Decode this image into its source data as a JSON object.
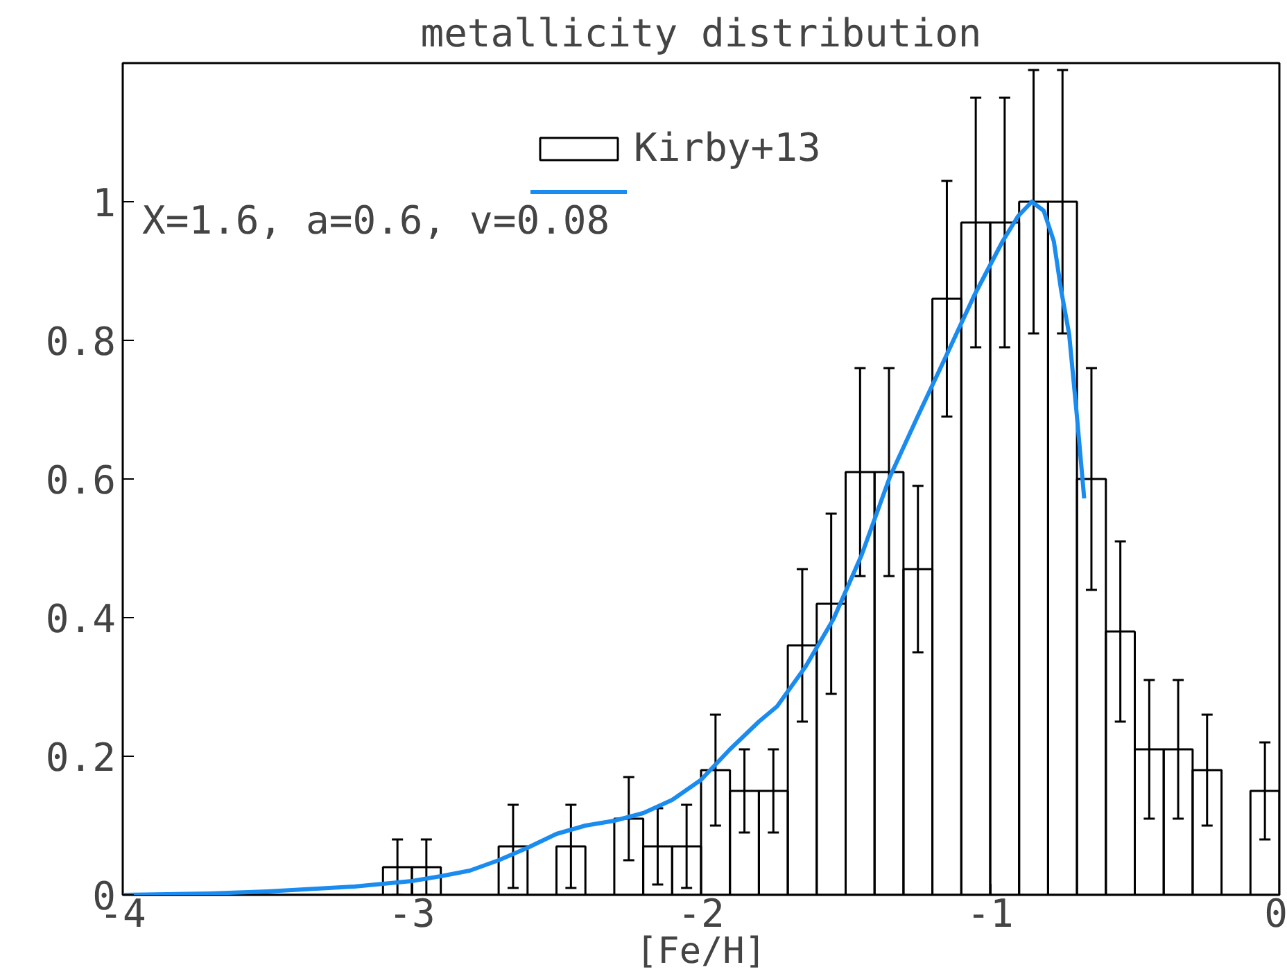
{
  "chart_data": {
    "type": "histogram",
    "title": "metallicity distribution",
    "xlabel": "[Fe/H]",
    "annotations": [
      "X=1.6, a=0.6, v=0.08"
    ],
    "bins": [
      -4.0,
      -3.9,
      -3.8,
      -3.7,
      -3.6,
      -3.5,
      -3.4,
      -3.3,
      -3.2,
      -3.1,
      -3.0,
      -2.9,
      -2.8,
      -2.7,
      -2.6,
      -2.5,
      -2.4,
      -2.3,
      -2.2,
      -2.1,
      -2.0,
      -1.9,
      -1.8,
      -1.7,
      -1.6,
      -1.5,
      -1.4,
      -1.3,
      -1.2,
      -1.1,
      -1.0,
      -0.9,
      -0.8,
      -0.7,
      -0.6,
      -0.5,
      -0.4,
      -0.3,
      -0.2,
      -0.1,
      0.0
    ],
    "series": [
      {
        "name": "Kirby+13",
        "color": "#000000",
        "values": [
          0,
          0,
          0,
          0,
          0,
          0,
          0,
          0,
          0,
          0.04,
          0.04,
          0,
          0,
          0.07,
          0,
          0.07,
          0,
          0.11,
          0.07,
          0.07,
          0.18,
          0.15,
          0.15,
          0.36,
          0.42,
          0.61,
          0.61,
          0.47,
          0.86,
          0.97,
          0.97,
          1.0,
          1.0,
          0.6,
          0.38,
          0.21,
          0.21,
          0.18,
          0,
          0.15
        ],
        "errors": [
          null,
          null,
          null,
          null,
          null,
          null,
          null,
          null,
          null,
          0.04,
          0.04,
          null,
          null,
          0.06,
          null,
          0.06,
          null,
          0.06,
          0.055,
          0.06,
          0.08,
          0.06,
          0.06,
          0.11,
          0.13,
          0.15,
          0.15,
          0.12,
          0.17,
          0.18,
          0.18,
          0.19,
          0.19,
          0.16,
          0.13,
          0.1,
          0.1,
          0.08,
          null,
          0.07
        ]
      },
      {
        "type": "line",
        "color": "#1a8cf0",
        "x": [
          -4.0,
          -3.7,
          -3.5,
          -3.2,
          -3.0,
          -2.9,
          -2.8,
          -2.7,
          -2.6,
          -2.5,
          -2.4,
          -2.3,
          -2.2,
          -2.1,
          -2.0,
          -1.9,
          -1.8,
          -1.737,
          -1.639,
          -1.542,
          -1.445,
          -1.347,
          -1.25,
          -1.153,
          -1.055,
          -0.957,
          -0.904,
          -0.856,
          -0.815,
          -0.78,
          -0.755,
          -0.727,
          -0.7,
          -0.675
        ],
        "values": [
          0.0,
          0.002,
          0.005,
          0.012,
          0.02,
          0.027,
          0.035,
          0.05,
          0.068,
          0.088,
          0.1,
          0.107,
          0.118,
          0.137,
          0.166,
          0.21,
          0.25,
          0.272,
          0.329,
          0.398,
          0.49,
          0.603,
          0.691,
          0.777,
          0.865,
          0.943,
          0.979,
          1.0,
          0.987,
          0.943,
          0.873,
          0.809,
          0.69,
          0.572
        ]
      }
    ],
    "xlim": [
      -4,
      0
    ],
    "ylim": [
      0,
      1.2
    ],
    "xticks": [
      -4,
      -3,
      -2,
      -1,
      0
    ],
    "yticks": [
      0,
      0.2,
      0.4,
      0.6,
      0.8,
      1
    ],
    "grid": false,
    "legend": "top right"
  }
}
